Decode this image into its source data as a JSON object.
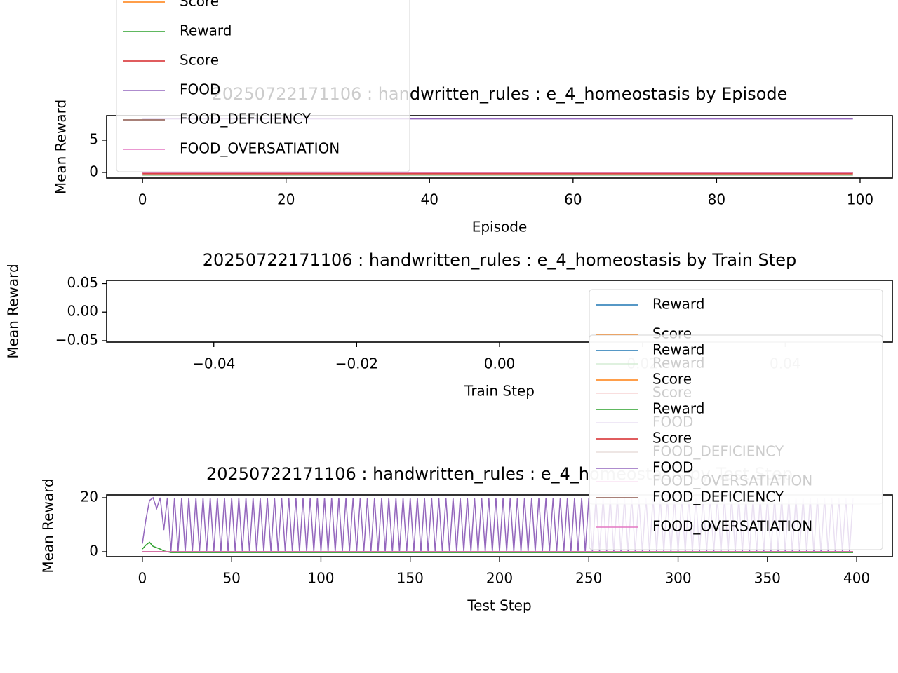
{
  "chart_data": [
    {
      "type": "line",
      "title": "20250722171106 : handwritten_rules : e_4_homeostasis by Episode",
      "xlabel": "Episode",
      "ylabel": "Mean Reward",
      "xlim": [
        -5,
        104.5
      ],
      "ylim": [
        -0.87,
        8.8
      ],
      "xticks": [
        0,
        20,
        40,
        60,
        80,
        100
      ],
      "yticks": [
        0,
        5
      ],
      "grid": false,
      "series": [
        {
          "name": "Score",
          "color": "#ff7f0e",
          "x": [
            0,
            99
          ],
          "values": [
            0,
            0
          ]
        },
        {
          "name": "Reward",
          "color": "#2ca02c",
          "x": [
            0,
            99
          ],
          "values": [
            -0.4,
            -0.4
          ]
        },
        {
          "name": "Score",
          "color": "#d62728",
          "x": [
            0,
            99
          ],
          "values": [
            -0.2,
            -0.2
          ]
        },
        {
          "name": "FOOD",
          "color": "#9467bd",
          "x": [
            0,
            99
          ],
          "values": [
            8.3,
            8.3
          ]
        },
        {
          "name": "FOOD_DEFICIENCY",
          "color": "#8c564b",
          "x": [
            0,
            99
          ],
          "values": [
            0,
            0
          ]
        },
        {
          "name": "FOOD_OVERSATIATION",
          "color": "#e377c2",
          "x": [
            0,
            99
          ],
          "values": [
            0,
            0
          ]
        }
      ]
    },
    {
      "type": "line",
      "title": "20250722171106 : handwritten_rules : e_4_homeostasis by Train Step",
      "xlabel": "Train Step",
      "ylabel": "Mean Reward",
      "xlim": [
        -0.055,
        0.055
      ],
      "ylim": [
        -0.0525,
        0.0555
      ],
      "xticks": [
        {
          "value": -0.04,
          "label": "−0.04"
        },
        {
          "value": -0.02,
          "label": "−0.02"
        },
        {
          "value": 0,
          "label": "0.00"
        },
        {
          "value": 0.02,
          "label": "0.02"
        },
        {
          "value": 0.04,
          "label": "0.04"
        }
      ],
      "yticks": [
        {
          "value": -0.05,
          "label": "−0.05"
        },
        {
          "value": 0,
          "label": "0.00"
        },
        {
          "value": 0.05,
          "label": "0.05"
        }
      ],
      "grid": false,
      "series": [
        {
          "name": "Reward",
          "color": "#1f77b4",
          "x": [],
          "values": []
        },
        {
          "name": "Score",
          "color": "#ff7f0e",
          "x": [],
          "values": []
        },
        {
          "name": "Reward",
          "color": "#2ca02c",
          "x": [],
          "values": []
        },
        {
          "name": "Score",
          "color": "#d62728",
          "x": [],
          "values": []
        },
        {
          "name": "FOOD",
          "color": "#9467bd",
          "x": [],
          "values": []
        },
        {
          "name": "FOOD_DEFICIENCY",
          "color": "#8c564b",
          "x": [],
          "values": []
        },
        {
          "name": "FOOD_OVERSATIATION",
          "color": "#e377c2",
          "x": [],
          "values": []
        }
      ]
    },
    {
      "type": "line",
      "title": "20250722171106 : handwritten_rules : e_4_homeostasis by Test Step",
      "xlabel": "Test Step",
      "ylabel": "Mean Reward",
      "xlim": [
        -20,
        420
      ],
      "ylim": [
        -1.82,
        21.04
      ],
      "xticks": [
        0,
        50,
        100,
        150,
        200,
        250,
        300,
        350,
        400
      ],
      "yticks": [
        0,
        20
      ],
      "grid": false,
      "series": [
        {
          "name": "Reward",
          "color": "#1f77b4",
          "x": [
            0,
            398
          ],
          "values": [
            0,
            0
          ]
        },
        {
          "name": "Score",
          "color": "#ff7f0e",
          "x": [
            0,
            398
          ],
          "values": [
            0,
            0
          ]
        },
        {
          "name": "Reward",
          "color": "#2ca02c",
          "x": [
            0,
            2,
            4,
            6,
            8,
            10,
            12,
            16,
            398
          ],
          "values": [
            1,
            2.5,
            3.5,
            2,
            1.5,
            1,
            0.3,
            -0.3,
            -0.3
          ]
        },
        {
          "name": "Score",
          "color": "#d62728",
          "x": [
            0,
            398
          ],
          "values": [
            0,
            0
          ]
        },
        {
          "name": "FOOD",
          "color": "#9467bd",
          "x": [
            0,
            2,
            4,
            6,
            8,
            10,
            12,
            14,
            16,
            18,
            20,
            22,
            24,
            26,
            28,
            30,
            32,
            34,
            36,
            38,
            40,
            42,
            44,
            46,
            48,
            50,
            52,
            54,
            56,
            58,
            60,
            62,
            64,
            66,
            68,
            70,
            72,
            74,
            76,
            78,
            80,
            82,
            84,
            86,
            88,
            90,
            92,
            94,
            96,
            98,
            100,
            102,
            104,
            106,
            108,
            110,
            112,
            114,
            116,
            118,
            120,
            122,
            124,
            126,
            128,
            130,
            132,
            134,
            136,
            138,
            140,
            142,
            144,
            146,
            148,
            150,
            152,
            154,
            156,
            158,
            160,
            162,
            164,
            166,
            168,
            170,
            172,
            174,
            176,
            178,
            180,
            182,
            184,
            186,
            188,
            190,
            192,
            194,
            196,
            198,
            200,
            202,
            204,
            206,
            208,
            210,
            212,
            214,
            216,
            218,
            220,
            222,
            224,
            226,
            228,
            230,
            232,
            234,
            236,
            238,
            240,
            242,
            244,
            246,
            248,
            250,
            252,
            254,
            256,
            258,
            260,
            262,
            264,
            266,
            268,
            270,
            272,
            274,
            276,
            278,
            280,
            282,
            284,
            286,
            288,
            290,
            292,
            294,
            296,
            298,
            300,
            302,
            304,
            306,
            308,
            310,
            312,
            314,
            316,
            318,
            320,
            322,
            324,
            326,
            328,
            330,
            332,
            334,
            336,
            338,
            340,
            342,
            344,
            346,
            348,
            350,
            352,
            354,
            356,
            358,
            360,
            362,
            364,
            366,
            368,
            370,
            372,
            374,
            376,
            378,
            380,
            382,
            384,
            386,
            388,
            390,
            392,
            394,
            396,
            398
          ],
          "values": [
            3,
            12,
            19,
            20,
            16,
            20,
            8,
            20,
            0,
            20,
            0,
            20,
            0,
            20,
            0,
            20,
            0,
            20,
            0,
            20,
            0,
            20,
            0,
            20,
            0,
            20,
            0,
            20,
            0,
            20,
            0,
            20,
            0,
            20,
            0,
            20,
            0,
            20,
            0,
            20,
            0,
            20,
            0,
            20,
            0,
            20,
            0,
            20,
            0,
            20,
            0,
            20,
            0,
            20,
            0,
            20,
            0,
            20,
            0,
            20,
            0,
            20,
            0,
            20,
            0,
            20,
            0,
            20,
            0,
            20,
            0,
            20,
            0,
            20,
            0,
            20,
            0,
            20,
            0,
            20,
            0,
            20,
            0,
            20,
            0,
            20,
            0,
            20,
            0,
            20,
            0,
            20,
            0,
            20,
            0,
            20,
            0,
            20,
            0,
            20,
            0,
            20,
            0,
            20,
            0,
            20,
            0,
            20,
            0,
            20,
            0,
            20,
            0,
            20,
            0,
            20,
            0,
            20,
            0,
            20,
            0,
            20,
            0,
            20,
            0,
            20,
            0,
            20,
            0,
            20,
            0,
            20,
            0,
            20,
            0,
            20,
            0,
            20,
            0,
            20,
            0,
            20,
            0,
            20,
            0,
            20,
            0,
            20,
            0,
            20,
            0,
            20,
            0,
            20,
            0,
            20,
            0,
            20,
            0,
            20,
            0,
            20,
            0,
            20,
            0,
            20,
            0,
            20,
            0,
            20,
            0,
            20,
            0,
            20,
            0,
            20,
            0,
            20,
            0,
            20,
            0,
            20,
            0,
            20,
            0,
            20,
            0,
            20,
            0,
            20,
            0,
            20,
            0,
            20,
            0,
            20,
            0,
            20,
            0,
            20
          ]
        },
        {
          "name": "FOOD_DEFICIENCY",
          "color": "#8c564b",
          "x": [
            0,
            398
          ],
          "values": [
            0,
            0
          ]
        },
        {
          "name": "FOOD_OVERSATIATION",
          "color": "#e377c2",
          "x": [
            0,
            398
          ],
          "values": [
            0,
            0
          ]
        }
      ]
    }
  ]
}
